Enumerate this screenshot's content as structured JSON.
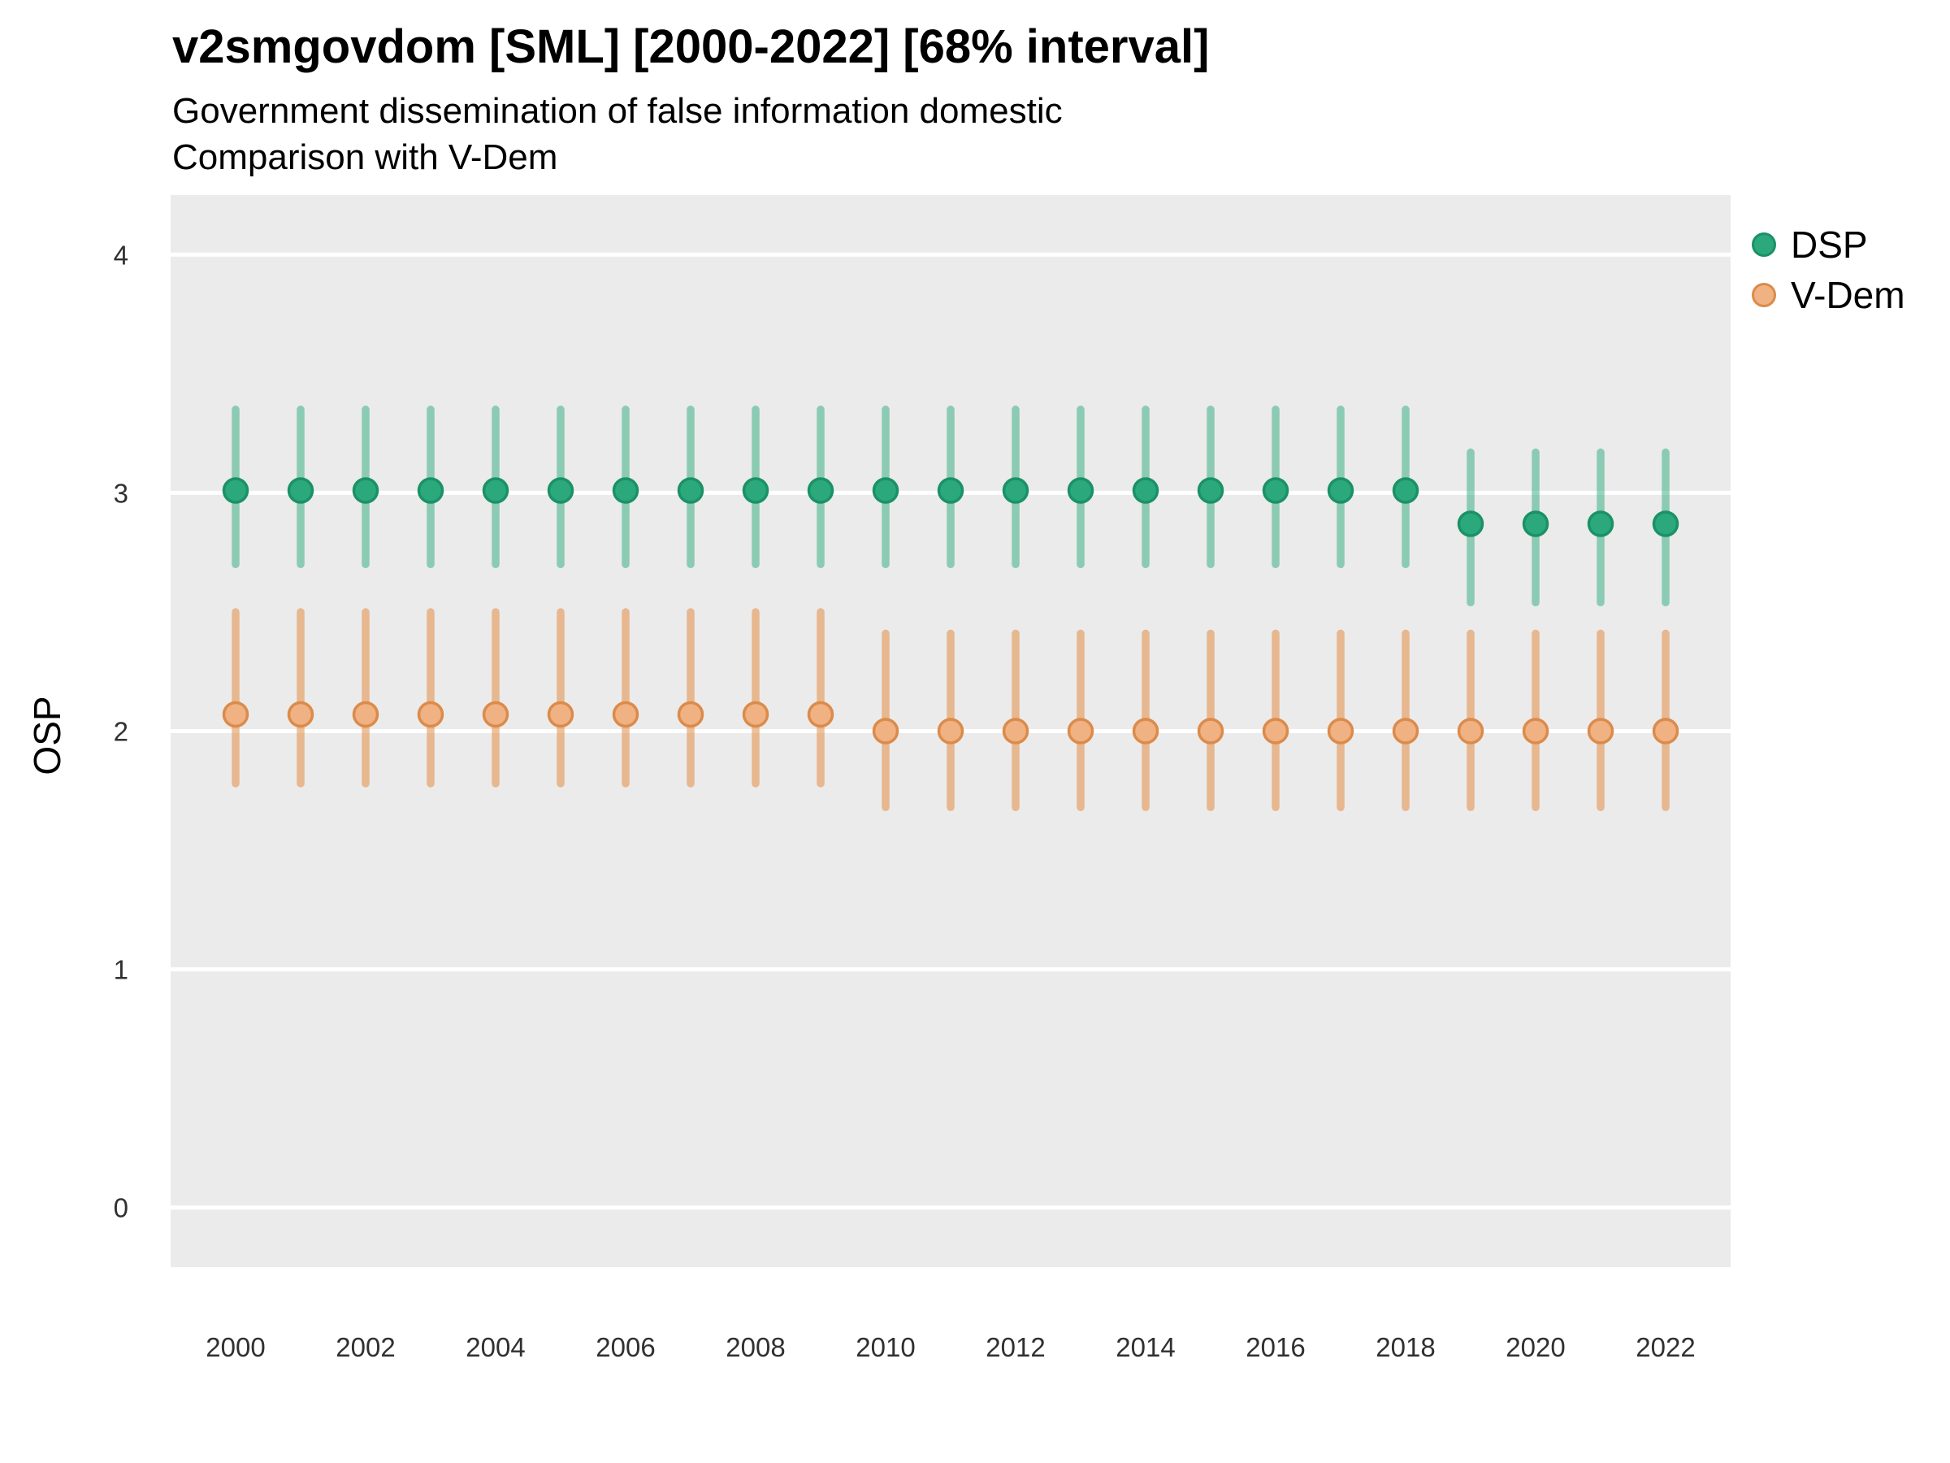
{
  "header": {
    "title": "v2smgovdom [SML] [2000-2022] [68% interval]",
    "subtitle_line1": "Government dissemination of false information domestic",
    "subtitle_line2": "Comparison with V-Dem"
  },
  "chart_data": {
    "type": "scatter",
    "mark": "pointrange",
    "error_bars": true,
    "interval": "68% interval",
    "x": [
      2000,
      2001,
      2002,
      2003,
      2004,
      2005,
      2006,
      2007,
      2008,
      2009,
      2010,
      2011,
      2012,
      2013,
      2014,
      2015,
      2016,
      2017,
      2018,
      2019,
      2020,
      2021,
      2022
    ],
    "series": [
      {
        "name": "DSP",
        "center": [
          3.01,
          3.01,
          3.01,
          3.01,
          3.01,
          3.01,
          3.01,
          3.01,
          3.01,
          3.01,
          3.01,
          3.01,
          3.01,
          3.01,
          3.01,
          3.01,
          3.01,
          3.01,
          3.01,
          2.87,
          2.87,
          2.87,
          2.87
        ],
        "lo": [
          2.7,
          2.7,
          2.7,
          2.7,
          2.7,
          2.7,
          2.7,
          2.7,
          2.7,
          2.7,
          2.7,
          2.7,
          2.7,
          2.7,
          2.7,
          2.7,
          2.7,
          2.7,
          2.7,
          2.54,
          2.54,
          2.54,
          2.54
        ],
        "hi": [
          3.35,
          3.35,
          3.35,
          3.35,
          3.35,
          3.35,
          3.35,
          3.35,
          3.35,
          3.35,
          3.35,
          3.35,
          3.35,
          3.35,
          3.35,
          3.35,
          3.35,
          3.35,
          3.35,
          3.17,
          3.17,
          3.17,
          3.17
        ],
        "point_fill": "#2BA97C",
        "point_stroke": "#1B9168",
        "bar_color": "rgba(43,169,124,0.5)"
      },
      {
        "name": "V-Dem",
        "center": [
          2.07,
          2.07,
          2.07,
          2.07,
          2.07,
          2.07,
          2.07,
          2.07,
          2.07,
          2.07,
          2.0,
          2.0,
          2.0,
          2.0,
          2.0,
          2.0,
          2.0,
          2.0,
          2.0,
          2.0,
          2.0,
          2.0,
          2.0
        ],
        "lo": [
          1.78,
          1.78,
          1.78,
          1.78,
          1.78,
          1.78,
          1.78,
          1.78,
          1.78,
          1.78,
          1.68,
          1.68,
          1.68,
          1.68,
          1.68,
          1.68,
          1.68,
          1.68,
          1.68,
          1.68,
          1.68,
          1.68,
          1.68
        ],
        "hi": [
          2.5,
          2.5,
          2.5,
          2.5,
          2.5,
          2.5,
          2.5,
          2.5,
          2.5,
          2.5,
          2.41,
          2.41,
          2.41,
          2.41,
          2.41,
          2.41,
          2.41,
          2.41,
          2.41,
          2.41,
          2.41,
          2.41,
          2.41
        ],
        "point_fill": "#F0B183",
        "point_stroke": "#DB8B4A",
        "bar_color": "rgba(228,140,69,0.55)"
      }
    ],
    "ylabel": "OSP",
    "yticks": [
      0,
      1,
      2,
      3,
      4
    ],
    "xticks": [
      2000,
      2002,
      2004,
      2006,
      2008,
      2010,
      2012,
      2014,
      2016,
      2018,
      2020,
      2022
    ],
    "ylim": [
      -0.25,
      4.25
    ],
    "xlim": [
      1999,
      2023
    ],
    "grid": "horizontal-major-only",
    "legend_position": "right",
    "panel_bg": "#EBEBEB",
    "grid_color": "#FFFFFF",
    "axis_text_color": "#303030"
  }
}
